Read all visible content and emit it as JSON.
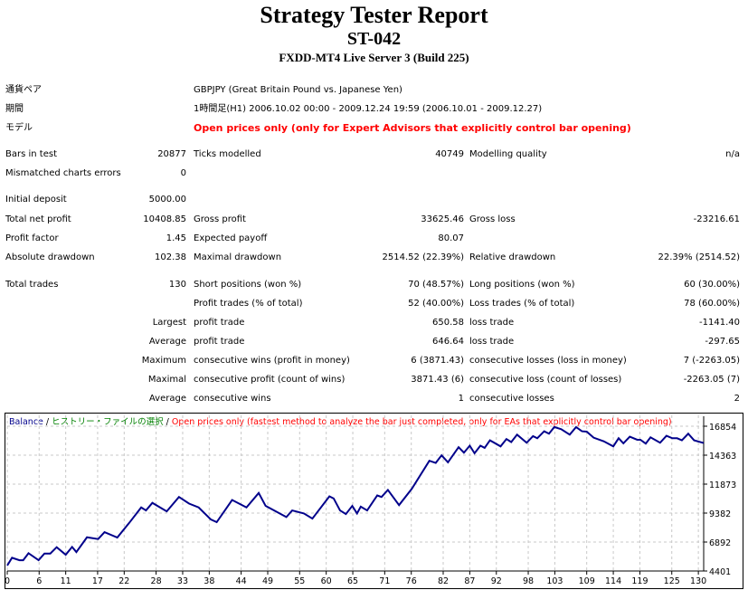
{
  "header": {
    "title": "Strategy Tester Report",
    "ea_name": "ST-042",
    "server": "FXDD-MT4 Live Server 3 (Build 225)"
  },
  "info": [
    {
      "label": "通貨ペア",
      "value": "GBPJPY (Great Britain Pound vs. Japanese Yen)"
    },
    {
      "label": "期間",
      "value": "1時間足(H1) 2006.10.02 00:00 - 2009.12.24 19:59 (2006.10.01 - 2009.12.27)"
    },
    {
      "label": "モデル",
      "value": "Open prices only (only for Expert Advisors that explicitly control bar opening)"
    }
  ],
  "stats": [
    [
      "Bars in test",
      "20877",
      "Ticks modelled",
      "40749",
      "Modelling quality",
      "n/a"
    ],
    [
      "Mismatched charts errors",
      "0",
      "",
      "",
      "",
      ""
    ],
    [
      "Initial deposit",
      "5000.00",
      "",
      "",
      "",
      ""
    ],
    [
      "Total net profit",
      "10408.85",
      "Gross profit",
      "33625.46",
      "Gross loss",
      "-23216.61"
    ],
    [
      "Profit factor",
      "1.45",
      "Expected payoff",
      "80.07",
      "",
      ""
    ],
    [
      "Absolute drawdown",
      "102.38",
      "Maximal drawdown",
      "2514.52 (22.39%)",
      "Relative drawdown",
      "22.39% (2514.52)"
    ],
    [
      "Total trades",
      "130",
      "Short positions (won %)",
      "70 (48.57%)",
      "Long positions (won %)",
      "60 (30.00%)"
    ],
    [
      "",
      "",
      "Profit trades (% of total)",
      "52 (40.00%)",
      "Loss trades (% of total)",
      "78 (60.00%)"
    ],
    [
      "Largest",
      "",
      "profit trade",
      "650.58",
      "loss trade",
      "-1141.40"
    ],
    [
      "Average",
      "",
      "profit trade",
      "646.64",
      "loss trade",
      "-297.65"
    ],
    [
      "Maximum",
      "",
      "consecutive wins (profit in money)",
      "6 (3871.43)",
      "consecutive losses (loss in money)",
      "7 (-2263.05)"
    ],
    [
      "Maximal",
      "",
      "consecutive profit (count of wins)",
      "3871.43 (6)",
      "consecutive loss (count of losses)",
      "-2263.05 (7)"
    ],
    [
      "Average",
      "",
      "consecutive wins",
      "1",
      "consecutive losses",
      "2"
    ]
  ],
  "chart_data": {
    "type": "line",
    "legend": {
      "series": "Balance",
      "sep1": " / ",
      "history": "ヒストリー・ファイルの選択",
      "sep2": " / ",
      "model": "Open prices only (fastest method to analyze the bar just completed, only for EAs that explicitly control bar opening)"
    },
    "colors": {
      "balance": "#00008b",
      "history": "#008000",
      "model": "#ff0000",
      "grid": "#c8c8c8"
    },
    "grid": true,
    "xlim": [
      0,
      131
    ],
    "ylim": [
      4401,
      16854
    ],
    "x_ticks": [
      0,
      6,
      11,
      17,
      22,
      28,
      33,
      38,
      44,
      49,
      55,
      60,
      65,
      71,
      76,
      82,
      87,
      92,
      98,
      103,
      109,
      114,
      119,
      125,
      130
    ],
    "y_ticks": [
      4401,
      6892,
      9382,
      11873,
      14363,
      16854
    ],
    "series": [
      {
        "name": "Balance",
        "points": [
          [
            0,
            4870
          ],
          [
            0.9,
            5540
          ],
          [
            2.3,
            5330
          ],
          [
            3,
            5330
          ],
          [
            4,
            5930
          ],
          [
            5.9,
            5330
          ],
          [
            7,
            5900
          ],
          [
            8.1,
            5900
          ],
          [
            9.3,
            6450
          ],
          [
            11,
            5800
          ],
          [
            12.2,
            6470
          ],
          [
            13,
            6030
          ],
          [
            15,
            7300
          ],
          [
            17.1,
            7150
          ],
          [
            18.3,
            7740
          ],
          [
            20.7,
            7280
          ],
          [
            23,
            8570
          ],
          [
            25.2,
            9870
          ],
          [
            26.1,
            9610
          ],
          [
            27.3,
            10260
          ],
          [
            30,
            9530
          ],
          [
            32.3,
            10770
          ],
          [
            34.2,
            10200
          ],
          [
            36,
            9870
          ],
          [
            38.3,
            8830
          ],
          [
            39.4,
            8600
          ],
          [
            42.3,
            10510
          ],
          [
            45,
            9870
          ],
          [
            47.3,
            11110
          ],
          [
            48.6,
            10000
          ],
          [
            52.5,
            9040
          ],
          [
            53.6,
            9610
          ],
          [
            55.8,
            9350
          ],
          [
            57.4,
            8910
          ],
          [
            60.6,
            10820
          ],
          [
            61.4,
            10640
          ],
          [
            62.6,
            9610
          ],
          [
            63.7,
            9300
          ],
          [
            64.9,
            10000
          ],
          [
            65.8,
            9350
          ],
          [
            66.5,
            9940
          ],
          [
            67.7,
            9610
          ],
          [
            69.6,
            10900
          ],
          [
            70.4,
            10770
          ],
          [
            71.6,
            11370
          ],
          [
            73.7,
            10070
          ],
          [
            76.1,
            11470
          ],
          [
            79.4,
            13880
          ],
          [
            80.6,
            13700
          ],
          [
            81.7,
            14350
          ],
          [
            82.9,
            13750
          ],
          [
            84.9,
            15050
          ],
          [
            85.9,
            14580
          ],
          [
            87,
            15180
          ],
          [
            87.9,
            14530
          ],
          [
            89,
            15180
          ],
          [
            89.8,
            14990
          ],
          [
            90.8,
            15640
          ],
          [
            92.8,
            15120
          ],
          [
            93.9,
            15750
          ],
          [
            94.8,
            15490
          ],
          [
            95.9,
            16130
          ],
          [
            97.7,
            15430
          ],
          [
            98.9,
            16000
          ],
          [
            99.7,
            15820
          ],
          [
            101,
            16420
          ],
          [
            101.9,
            16210
          ],
          [
            102.9,
            16780
          ],
          [
            104.2,
            16600
          ],
          [
            105.8,
            16130
          ],
          [
            107,
            16780
          ],
          [
            108.1,
            16420
          ],
          [
            109,
            16390
          ],
          [
            110.3,
            15870
          ],
          [
            112.2,
            15560
          ],
          [
            114,
            15120
          ],
          [
            115,
            15820
          ],
          [
            115.9,
            15380
          ],
          [
            117.1,
            15950
          ],
          [
            118.5,
            15690
          ],
          [
            119.1,
            15690
          ],
          [
            120.1,
            15360
          ],
          [
            121,
            15900
          ],
          [
            122.8,
            15430
          ],
          [
            124,
            16030
          ],
          [
            125.1,
            15820
          ],
          [
            126,
            15820
          ],
          [
            126.9,
            15640
          ],
          [
            128.1,
            16210
          ],
          [
            129.2,
            15640
          ],
          [
            131,
            15409
          ]
        ]
      }
    ]
  }
}
